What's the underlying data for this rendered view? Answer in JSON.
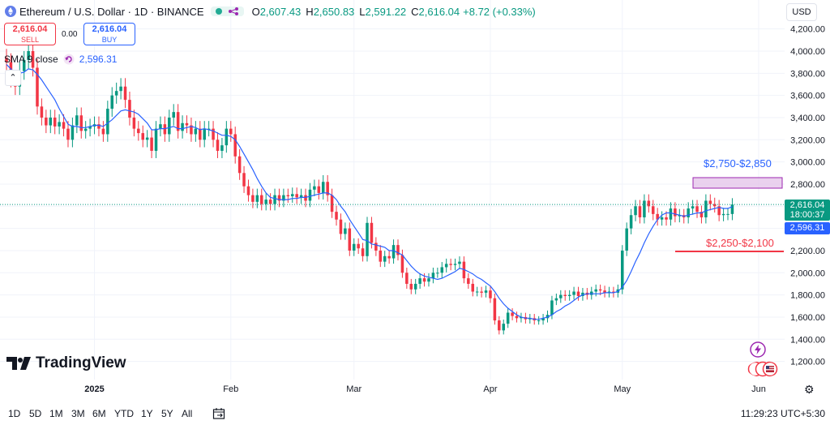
{
  "header": {
    "symbol_title": "Ethereum / U.S. Dollar · 1D · BINANCE",
    "o_label": "O",
    "o_value": "2,607.43",
    "h_label": "H",
    "h_value": "2,650.83",
    "l_label": "L",
    "l_value": "2,591.22",
    "c_label": "C",
    "c_value": "2,616.04",
    "change": "+8.72 (+0.33%)"
  },
  "trade": {
    "sell_price": "2,616.04",
    "sell_label": "SELL",
    "spread": "0.00",
    "buy_price": "2,616.04",
    "buy_label": "BUY"
  },
  "indicator": {
    "name": "SMA 9 close",
    "value": "2,596.31"
  },
  "currency_button": "USD",
  "price_tags": {
    "last_price": "2,616.04",
    "countdown": "18:00:37",
    "sma_value": "2,596.31"
  },
  "zones": {
    "resistance_label": "$2,750-$2,850",
    "support_label": "$2,250-$2,100"
  },
  "logo_text": "TradingView",
  "range_buttons": [
    "1D",
    "5D",
    "1M",
    "3M",
    "6M",
    "YTD",
    "1Y",
    "5Y",
    "All"
  ],
  "time_display": "11:29:23 UTC+5:30",
  "colors": {
    "up": "#089981",
    "down": "#f23645",
    "sma": "#2962ff",
    "zone_fill": "#e1bee7",
    "zone_stroke": "#9c27b0"
  },
  "chart_data": {
    "type": "candlestick",
    "title": "Ethereum / U.S. Dollar · 1D · BINANCE",
    "xlabel": "",
    "ylabel": "USD",
    "ylim": [
      1080,
      4300
    ],
    "y_ticks": [
      1200,
      1400,
      1600,
      1800,
      2000,
      2200,
      2400,
      2600,
      2800,
      3000,
      3200,
      3400,
      3600,
      3800,
      4000,
      4200
    ],
    "x_ticks": [
      {
        "label": "2025",
        "day": 20
      },
      {
        "label": "Feb",
        "day": 51
      },
      {
        "label": "Mar",
        "day": 79
      },
      {
        "label": "Apr",
        "day": 110
      },
      {
        "label": "May",
        "day": 140
      },
      {
        "label": "Jun",
        "day": 171
      }
    ],
    "days": 172,
    "close": [
      3900,
      3750,
      3680,
      3820,
      3920,
      4000,
      3850,
      3500,
      3400,
      3330,
      3400,
      3320,
      3360,
      3300,
      3200,
      3330,
      3420,
      3280,
      3300,
      3320,
      3340,
      3300,
      3250,
      3480,
      3600,
      3640,
      3680,
      3560,
      3400,
      3300,
      3260,
      3200,
      3220,
      3100,
      3300,
      3340,
      3250,
      3400,
      3450,
      3280,
      3350,
      3330,
      3250,
      3300,
      3200,
      3300,
      3300,
      3200,
      3100,
      3150,
      3300,
      3250,
      3050,
      2900,
      2780,
      2700,
      2640,
      2700,
      2620,
      2660,
      2620,
      2700,
      2650,
      2700,
      2690,
      2710,
      2680,
      2700,
      2650,
      2750,
      2780,
      2720,
      2820,
      2700,
      2550,
      2480,
      2350,
      2400,
      2200,
      2260,
      2220,
      2150,
      2450,
      2270,
      2200,
      2100,
      2150,
      2130,
      2250,
      2160,
      2000,
      1900,
      1850,
      1900,
      1950,
      1920,
      1950,
      2000,
      2000,
      2050,
      2080,
      2070,
      2080,
      2100,
      1950,
      1900,
      1830,
      1830,
      1820,
      1840,
      1770,
      1570,
      1480,
      1540,
      1640,
      1610,
      1590,
      1600,
      1580,
      1590,
      1570,
      1570,
      1590,
      1620,
      1750,
      1770,
      1800,
      1790,
      1800,
      1830,
      1790,
      1820,
      1800,
      1830,
      1850,
      1840,
      1820,
      1830,
      1820,
      1850,
      2200,
      2400,
      2520,
      2600,
      2500,
      2650,
      2600,
      2530,
      2480,
      2500,
      2480,
      2580,
      2510,
      2520,
      2500,
      2580,
      2600,
      2550,
      2500,
      2650,
      2620,
      2600,
      2520,
      2530,
      2530,
      2616
    ],
    "sma_9": [
      3880,
      3840,
      3800,
      3800,
      3810,
      3840,
      3830,
      3790,
      3740,
      3680,
      3620,
      3560,
      3480,
      3410,
      3340,
      3320,
      3320,
      3310,
      3310,
      3320,
      3330,
      3330,
      3320,
      3350,
      3380,
      3420,
      3460,
      3470,
      3460,
      3450,
      3430,
      3390,
      3350,
      3290,
      3290,
      3300,
      3300,
      3310,
      3320,
      3300,
      3300,
      3310,
      3320,
      3310,
      3290,
      3300,
      3290,
      3280,
      3260,
      3240,
      3240,
      3230,
      3200,
      3140,
      3070,
      3000,
      2930,
      2850,
      2780,
      2720,
      2680,
      2670,
      2660,
      2660,
      2660,
      2670,
      2670,
      2680,
      2680,
      2690,
      2700,
      2710,
      2720,
      2720,
      2700,
      2660,
      2600,
      2550,
      2480,
      2420,
      2360,
      2300,
      2290,
      2260,
      2250,
      2240,
      2230,
      2200,
      2200,
      2180,
      2160,
      2110,
      2060,
      2020,
      1990,
      1970,
      1960,
      1950,
      1940,
      1950,
      1970,
      1990,
      2010,
      2040,
      2030,
      2010,
      1990,
      1960,
      1940,
      1910,
      1880,
      1830,
      1770,
      1720,
      1680,
      1650,
      1620,
      1600,
      1590,
      1590,
      1580,
      1580,
      1590,
      1600,
      1620,
      1650,
      1670,
      1700,
      1720,
      1750,
      1780,
      1800,
      1810,
      1810,
      1810,
      1810,
      1820,
      1820,
      1820,
      1830,
      1870,
      1930,
      2010,
      2100,
      2180,
      2270,
      2350,
      2420,
      2480,
      2520,
      2540,
      2540,
      2530,
      2520,
      2510,
      2520,
      2530,
      2540,
      2540,
      2560,
      2570,
      2580,
      2590,
      2580,
      2580,
      2596
    ]
  }
}
